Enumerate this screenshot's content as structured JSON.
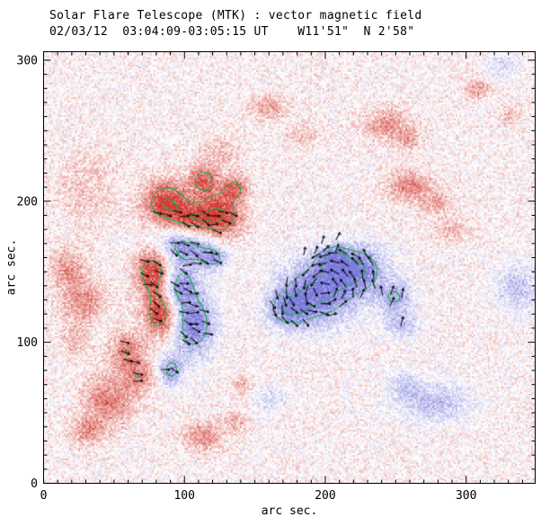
{
  "chart_data": {
    "type": "heatmap",
    "title": "Solar Flare Telescope (MTK) : vector magnetic field",
    "subtitle": "02/03/12  03:04:09-03:05:15 UT    W11'51\"  N 2'58\"",
    "xlabel": "arc sec.",
    "ylabel": "arc sec.",
    "xlim": [
      0,
      349
    ],
    "ylim": [
      0,
      306
    ],
    "xticks": [
      0,
      100,
      200,
      300
    ],
    "yticks": [
      0,
      100,
      200,
      300
    ],
    "minor_tick_step": 10,
    "legend": "red = positive polarity, blue = negative polarity, green = field-strength contours, black = transverse field vectors",
    "colors": {
      "positive": "#d23830",
      "negative": "#7878dc",
      "contour": "#1fae4b",
      "vector": "#000000",
      "frame": "#000000",
      "background": "#ffffff"
    },
    "noise": {
      "amplitude": 0.34,
      "bias": 0.035,
      "seed": 12345
    },
    "contour_levels": [
      0.62,
      0.95
    ],
    "blobs": [
      {
        "x": 87,
        "y": 199,
        "rx": 16,
        "ry": 16,
        "amp": 0.95
      },
      {
        "x": 125,
        "y": 190,
        "rx": 15,
        "ry": 18,
        "amp": 0.95
      },
      {
        "x": 105,
        "y": 186,
        "rx": 14,
        "ry": 12,
        "amp": 0.8
      },
      {
        "x": 113,
        "y": 216,
        "rx": 10,
        "ry": 10,
        "amp": 0.7
      },
      {
        "x": 136,
        "y": 210,
        "rx": 9,
        "ry": 9,
        "amp": 0.6
      },
      {
        "x": 78,
        "y": 151,
        "rx": 13,
        "ry": 18,
        "amp": 0.95
      },
      {
        "x": 83,
        "y": 120,
        "rx": 12,
        "ry": 16,
        "amp": 0.9
      },
      {
        "x": 59,
        "y": 94,
        "rx": 12,
        "ry": 14,
        "amp": 0.6
      },
      {
        "x": 28,
        "y": 129,
        "rx": 16,
        "ry": 15,
        "amp": 0.5
      },
      {
        "x": 17,
        "y": 152,
        "rx": 12,
        "ry": 14,
        "amp": 0.45
      },
      {
        "x": 22,
        "y": 101,
        "rx": 10,
        "ry": 12,
        "amp": 0.3
      },
      {
        "x": 30,
        "y": 210,
        "rx": 22,
        "ry": 28,
        "amp": 0.22
      },
      {
        "x": 160,
        "y": 267,
        "rx": 13,
        "ry": 9,
        "amp": 0.4
      },
      {
        "x": 183,
        "y": 247,
        "rx": 10,
        "ry": 8,
        "amp": 0.3
      },
      {
        "x": 243,
        "y": 255,
        "rx": 16,
        "ry": 11,
        "amp": 0.5
      },
      {
        "x": 259,
        "y": 244,
        "rx": 10,
        "ry": 8,
        "amp": 0.35
      },
      {
        "x": 308,
        "y": 280,
        "rx": 9,
        "ry": 7,
        "amp": 0.45
      },
      {
        "x": 331,
        "y": 261,
        "rx": 7,
        "ry": 6,
        "amp": 0.35
      },
      {
        "x": 260,
        "y": 211,
        "rx": 16,
        "ry": 11,
        "amp": 0.55
      },
      {
        "x": 278,
        "y": 199,
        "rx": 10,
        "ry": 8,
        "amp": 0.4
      },
      {
        "x": 291,
        "y": 180,
        "rx": 13,
        "ry": 9,
        "amp": 0.3
      },
      {
        "x": 46,
        "y": 59,
        "rx": 17,
        "ry": 18,
        "amp": 0.6
      },
      {
        "x": 68,
        "y": 75,
        "rx": 11,
        "ry": 11,
        "amp": 0.5
      },
      {
        "x": 30,
        "y": 37,
        "rx": 12,
        "ry": 10,
        "amp": 0.45
      },
      {
        "x": 113,
        "y": 33,
        "rx": 14,
        "ry": 10,
        "amp": 0.5
      },
      {
        "x": 136,
        "y": 43,
        "rx": 9,
        "ry": 8,
        "amp": 0.35
      },
      {
        "x": 140,
        "y": 70,
        "rx": 6,
        "ry": 6,
        "amp": 0.4
      },
      {
        "x": 125,
        "y": 235,
        "rx": 15,
        "ry": 12,
        "amp": 0.25
      },
      {
        "x": 100,
        "y": 169,
        "rx": 22,
        "ry": 15,
        "amp": -0.85
      },
      {
        "x": 121,
        "y": 160,
        "rx": 10,
        "ry": 9,
        "amp": -0.6
      },
      {
        "x": 96,
        "y": 140,
        "rx": 12,
        "ry": 14,
        "amp": -0.8
      },
      {
        "x": 106,
        "y": 113,
        "rx": 15,
        "ry": 22,
        "amp": -0.95
      },
      {
        "x": 90,
        "y": 80,
        "rx": 9,
        "ry": 11,
        "amp": -0.7
      },
      {
        "x": 195,
        "y": 136,
        "rx": 26,
        "ry": 22,
        "amp": -1.0
      },
      {
        "x": 224,
        "y": 152,
        "rx": 20,
        "ry": 17,
        "amp": -0.85
      },
      {
        "x": 173,
        "y": 123,
        "rx": 15,
        "ry": 13,
        "amp": -0.7
      },
      {
        "x": 250,
        "y": 132,
        "rx": 13,
        "ry": 11,
        "amp": -0.6
      },
      {
        "x": 205,
        "y": 160,
        "rx": 12,
        "ry": 10,
        "amp": -0.6
      },
      {
        "x": 253,
        "y": 113,
        "rx": 12,
        "ry": 10,
        "amp": -0.5
      },
      {
        "x": 277,
        "y": 58,
        "rx": 26,
        "ry": 14,
        "amp": -0.5
      },
      {
        "x": 255,
        "y": 70,
        "rx": 10,
        "ry": 9,
        "amp": -0.35
      },
      {
        "x": 337,
        "y": 139,
        "rx": 16,
        "ry": 17,
        "amp": -0.45
      },
      {
        "x": 326,
        "y": 296,
        "rx": 12,
        "ry": 9,
        "amp": -0.3
      },
      {
        "x": 160,
        "y": 60,
        "rx": 12,
        "ry": 9,
        "amp": -0.3
      }
    ],
    "vector_fields": [
      {
        "x0": 52,
        "x1": 150,
        "y0": 72,
        "y1": 192,
        "step": 7,
        "swirl": false,
        "center": [
          0,
          0
        ],
        "angle_deg": -18,
        "jitter_deg": 28,
        "min_field": 0.5,
        "length": 7
      },
      {
        "x0": 150,
        "x1": 268,
        "y0": 100,
        "y1": 182,
        "step": 7,
        "swirl": true,
        "center": [
          200,
          137
        ],
        "angle_deg": 0,
        "jitter_deg": 20,
        "min_field": 0.5,
        "length": 7
      },
      {
        "x0": 168,
        "x1": 215,
        "y0": 166,
        "y1": 182,
        "step": 8,
        "swirl": false,
        "center": [
          0,
          0
        ],
        "angle_deg": 60,
        "jitter_deg": 25,
        "min_field": 0.15,
        "length": 6
      }
    ]
  }
}
